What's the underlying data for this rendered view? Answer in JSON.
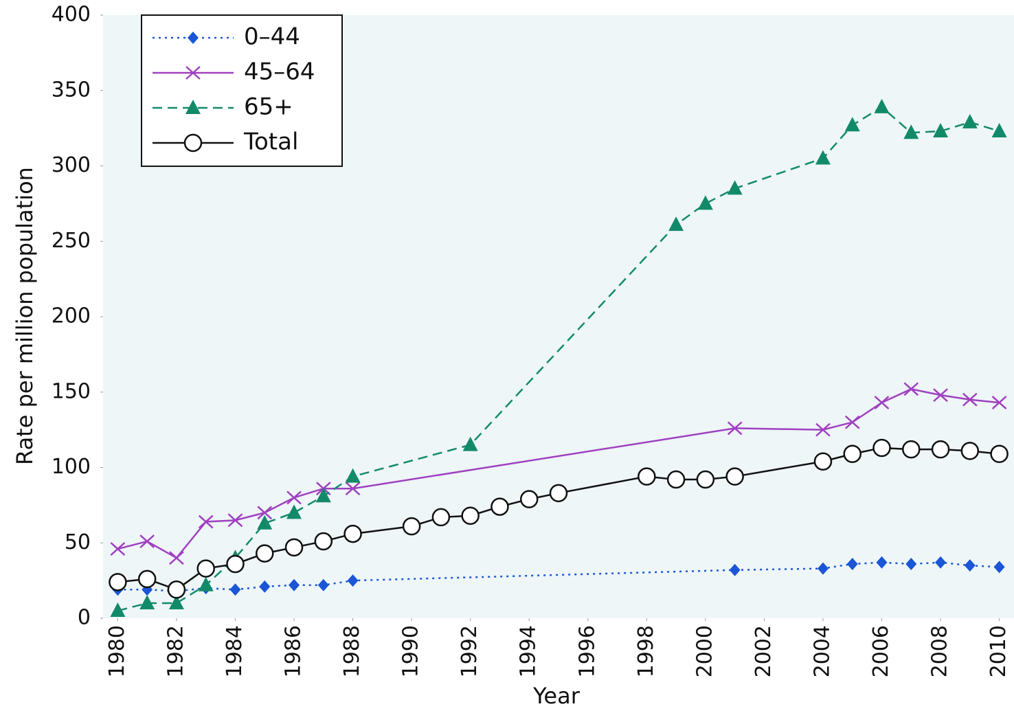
{
  "chart_data": {
    "type": "line",
    "x_label": "Year",
    "y_label": "Rate per million population",
    "xlim": [
      1979.5,
      2010.5
    ],
    "xticks": [
      1980,
      1982,
      1984,
      1986,
      1988,
      1990,
      1992,
      1994,
      1996,
      1998,
      2000,
      2002,
      2004,
      2006,
      2008,
      2010
    ],
    "ylim": [
      0,
      400
    ],
    "yticks": [
      0,
      50,
      100,
      150,
      200,
      250,
      300,
      350,
      400
    ],
    "legend": "upper left",
    "series": [
      {
        "name": "0–44",
        "color": "#1a56d6",
        "dash": "dotted",
        "marker": "diamond",
        "x": [
          1980,
          1981,
          1982,
          1983,
          1984,
          1985,
          1986,
          1987,
          1988,
          2001,
          2004,
          2005,
          2006,
          2007,
          2008,
          2009,
          2010
        ],
        "values": [
          19,
          19,
          18,
          20,
          19,
          21,
          22,
          22,
          25,
          32,
          33,
          36,
          37,
          36,
          37,
          35,
          34
        ]
      },
      {
        "name": "45–64",
        "color": "#a040c0",
        "dash": "solid",
        "marker": "x",
        "x": [
          1980,
          1981,
          1982,
          1983,
          1984,
          1985,
          1986,
          1987,
          1988,
          2001,
          2004,
          2005,
          2006,
          2007,
          2008,
          2009,
          2010
        ],
        "values": [
          46,
          51,
          40,
          64,
          65,
          70,
          80,
          86,
          86,
          126,
          125,
          130,
          143,
          152,
          148,
          145,
          143
        ]
      },
      {
        "name": "65+",
        "color": "#128a6a",
        "dash": "dashed",
        "marker": "triangle",
        "x": [
          1980,
          1981,
          1982,
          1983,
          1984,
          1985,
          1986,
          1987,
          1988,
          1992,
          1999,
          2000,
          2001,
          2004,
          2005,
          2006,
          2007,
          2008,
          2009,
          2010
        ],
        "values": [
          5,
          10,
          10,
          22,
          40,
          63,
          70,
          81,
          94,
          115,
          261,
          275,
          285,
          305,
          327,
          339,
          322,
          323,
          329,
          323
        ]
      },
      {
        "name": "Total",
        "color": "#111111",
        "dash": "solid",
        "marker": "circle",
        "x": [
          1980,
          1981,
          1982,
          1983,
          1984,
          1985,
          1986,
          1987,
          1988,
          1990,
          1991,
          1992,
          1993,
          1994,
          1995,
          1998,
          1999,
          2000,
          2001,
          2004,
          2005,
          2006,
          2007,
          2008,
          2009,
          2010
        ],
        "values": [
          24,
          26,
          19,
          33,
          36,
          43,
          47,
          51,
          56,
          61,
          67,
          68,
          74,
          79,
          83,
          94,
          92,
          92,
          94,
          104,
          109,
          113,
          112,
          112,
          111,
          109
        ]
      }
    ]
  }
}
